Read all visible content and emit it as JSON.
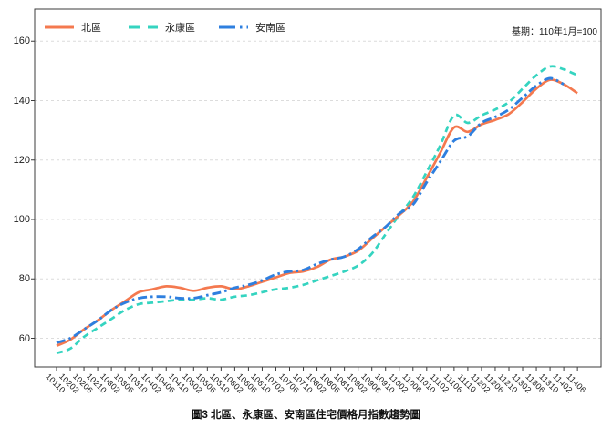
{
  "annotation": "基期：110年1月=100",
  "title": "圖3 北區、永康區、安南區住宅價格月指數趨勢圖",
  "chart_data": {
    "type": "line",
    "title": "圖3 北區、永康區、安南區住宅價格月指數趨勢圖",
    "baseline_note": "基期：110年1月=100",
    "legend_position": "top-left-inside",
    "grid": true,
    "grid_color": "#dcdcdc",
    "spine_color": "#3b3b3b",
    "ylim": [
      50,
      171
    ],
    "yticks": [
      60,
      80,
      100,
      120,
      140,
      160
    ],
    "x_labels": [
      "10110",
      "10202",
      "10206",
      "10210",
      "10302",
      "10306",
      "10310",
      "10402",
      "10406",
      "10410",
      "10502",
      "10506",
      "10510",
      "10602",
      "10606",
      "10610",
      "10702",
      "10706",
      "10710",
      "10802",
      "10806",
      "10810",
      "10902",
      "10906",
      "10910",
      "11002",
      "11006",
      "11010",
      "11102",
      "11106",
      "11110",
      "11202",
      "11206",
      "11210",
      "11302",
      "11306",
      "11310",
      "11402",
      "11406"
    ],
    "series": [
      {
        "name": "北區",
        "color": "#F4794F",
        "style": "solid",
        "values": [
          57.5,
          59.5,
          63,
          66,
          69.5,
          72.5,
          75.5,
          76.5,
          77.5,
          77,
          76,
          77,
          77.5,
          76.5,
          77.5,
          79,
          80.5,
          82,
          82.5,
          84,
          86.5,
          87.5,
          89.5,
          93.5,
          97.5,
          101.5,
          106,
          114,
          122.5,
          131,
          129.5,
          132,
          133.5,
          135.5,
          139.5,
          144,
          147,
          145.5,
          142.5
        ]
      },
      {
        "name": "永康區",
        "color": "#35D4C0",
        "style": "dashed",
        "values": [
          55,
          56.5,
          60.5,
          63.5,
          66.5,
          69.5,
          71.5,
          72,
          72.5,
          73,
          73,
          73.5,
          73,
          74,
          74.5,
          75.5,
          76.5,
          77,
          78,
          79.5,
          81,
          82.5,
          84.5,
          88.5,
          95,
          101.5,
          107.5,
          116,
          125,
          135,
          132.5,
          135,
          137,
          139.5,
          144,
          148.5,
          151.5,
          150.5,
          148.5
        ]
      },
      {
        "name": "安南區",
        "color": "#2E7FDF",
        "style": "dashdot",
        "values": [
          58.5,
          60,
          63,
          66,
          69.5,
          72,
          73.5,
          74,
          74,
          73.5,
          73.5,
          74.5,
          75.5,
          77,
          78,
          79.5,
          81.5,
          82.5,
          83,
          85,
          86.5,
          87.5,
          90,
          94,
          97.5,
          102,
          105,
          112.5,
          119.5,
          126.5,
          128,
          132.5,
          134.5,
          137,
          141,
          145,
          147.5,
          145.5,
          null
        ]
      }
    ]
  }
}
